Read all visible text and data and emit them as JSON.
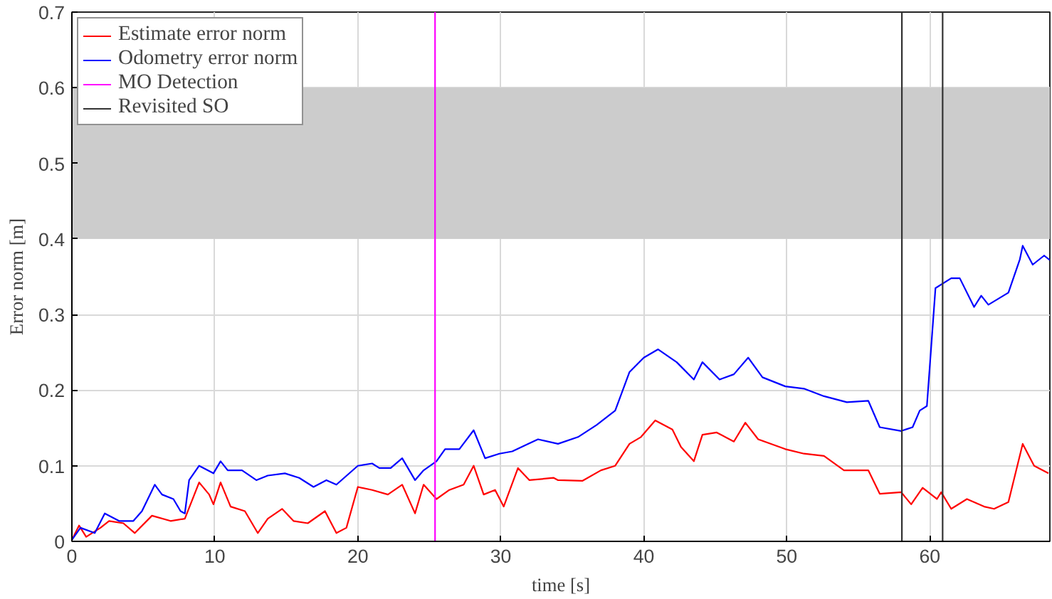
{
  "chart_data": {
    "type": "line",
    "xlabel": "time [s]",
    "ylabel": "Error norm [m]",
    "xlim": [
      0,
      68.4
    ],
    "ylim": [
      0,
      0.7
    ],
    "xticks": [
      0,
      10,
      20,
      30,
      40,
      50,
      60
    ],
    "yticks": [
      0,
      0.1,
      0.2,
      0.3,
      0.4,
      0.5,
      0.6,
      0.7
    ],
    "grid": true,
    "legend": "top left",
    "line_style": "solid",
    "marker": "none",
    "series": [
      {
        "name": "Estimate error norm",
        "color": "#ff0000",
        "x": [
          0,
          0.5,
          1,
          2,
          2.6,
          3.6,
          4.4,
          5.6,
          6.9,
          7.9,
          8.9,
          9.6,
          9.9,
          10.4,
          11.1,
          12.1,
          13,
          13.7,
          14.7,
          15.5,
          16.5,
          17.7,
          18.5,
          19.2,
          20,
          21,
          22.1,
          23.1,
          24,
          24.6,
          25.5,
          26.4,
          27.4,
          28.1,
          28.8,
          29.6,
          30.2,
          31.2,
          32,
          33.7,
          34,
          35.7,
          37,
          38,
          39,
          39.8,
          40.8,
          42,
          42.6,
          43.5,
          44.1,
          45.1,
          46.3,
          47.1,
          48,
          49.9,
          51.2,
          52.6,
          54,
          55.7,
          56.5,
          58,
          58.7,
          59.5,
          60.5,
          60.8,
          61.5,
          62.6,
          63.8,
          64.5,
          65.5,
          66.5,
          67.3,
          68.3
        ],
        "values": [
          0.002,
          0.021,
          0.006,
          0.018,
          0.027,
          0.024,
          0.011,
          0.034,
          0.027,
          0.03,
          0.078,
          0.062,
          0.049,
          0.078,
          0.046,
          0.04,
          0.011,
          0.03,
          0.043,
          0.027,
          0.024,
          0.04,
          0.011,
          0.018,
          0.072,
          0.068,
          0.062,
          0.075,
          0.037,
          0.075,
          0.056,
          0.068,
          0.075,
          0.1,
          0.062,
          0.068,
          0.046,
          0.097,
          0.081,
          0.084,
          0.081,
          0.08,
          0.094,
          0.1,
          0.129,
          0.138,
          0.16,
          0.148,
          0.125,
          0.106,
          0.141,
          0.144,
          0.132,
          0.157,
          0.135,
          0.122,
          0.116,
          0.113,
          0.094,
          0.094,
          0.063,
          0.065,
          0.049,
          0.071,
          0.056,
          0.065,
          0.043,
          0.056,
          0.046,
          0.043,
          0.052,
          0.129,
          0.1,
          0.09
        ]
      },
      {
        "name": "Odometry error norm",
        "color": "#0000ff",
        "x": [
          0,
          0.6,
          1.6,
          2.3,
          3.3,
          4.3,
          4.9,
          5.8,
          6.3,
          7.1,
          7.6,
          7.9,
          8.2,
          8.9,
          9.9,
          10.4,
          10.9,
          11.9,
          12.9,
          13.7,
          14.9,
          15.9,
          16.9,
          17.8,
          18.5,
          20,
          21,
          21.5,
          22.3,
          23.1,
          24,
          24.6,
          25.5,
          26.1,
          27.1,
          28.1,
          28.9,
          29.9,
          30.8,
          31.8,
          32.6,
          34,
          35.4,
          36.7,
          38,
          39,
          40,
          41,
          42.3,
          43.5,
          44.1,
          45.3,
          46.3,
          47.3,
          48.3,
          49.9,
          51.2,
          52.6,
          54.2,
          55.7,
          56.5,
          58,
          58.8,
          59.3,
          59.8,
          60.4,
          61.5,
          62.1,
          63.1,
          63.6,
          64.1,
          65.5,
          66.3,
          66.5,
          67.2,
          68,
          68.4
        ],
        "values": [
          0.002,
          0.018,
          0.011,
          0.037,
          0.027,
          0.027,
          0.04,
          0.075,
          0.062,
          0.056,
          0.04,
          0.037,
          0.081,
          0.1,
          0.09,
          0.106,
          0.094,
          0.094,
          0.081,
          0.087,
          0.09,
          0.084,
          0.072,
          0.081,
          0.075,
          0.1,
          0.103,
          0.097,
          0.097,
          0.11,
          0.081,
          0.094,
          0.106,
          0.122,
          0.122,
          0.147,
          0.11,
          0.116,
          0.119,
          0.128,
          0.135,
          0.129,
          0.138,
          0.154,
          0.173,
          0.224,
          0.243,
          0.254,
          0.237,
          0.214,
          0.237,
          0.214,
          0.221,
          0.243,
          0.217,
          0.205,
          0.202,
          0.192,
          0.184,
          0.186,
          0.151,
          0.146,
          0.151,
          0.173,
          0.179,
          0.335,
          0.348,
          0.348,
          0.31,
          0.325,
          0.313,
          0.329,
          0.373,
          0.391,
          0.366,
          0.378,
          0.372
        ]
      },
      {
        "name": "MO Detection",
        "color": "#ff00ff",
        "x": [
          25.4,
          25.4
        ],
        "values": [
          0,
          0.7
        ]
      },
      {
        "name": "Revisited SO",
        "color": "#333333",
        "x": [
          58.05,
          58.05,
          59.5,
          60.9,
          60.9
        ],
        "values": [
          0,
          0.7,
          null,
          0.7,
          0
        ]
      }
    ],
    "bands": [
      {
        "axis": "y",
        "from": 0.4,
        "to": 0.6,
        "color": "#cccccc"
      }
    ]
  }
}
